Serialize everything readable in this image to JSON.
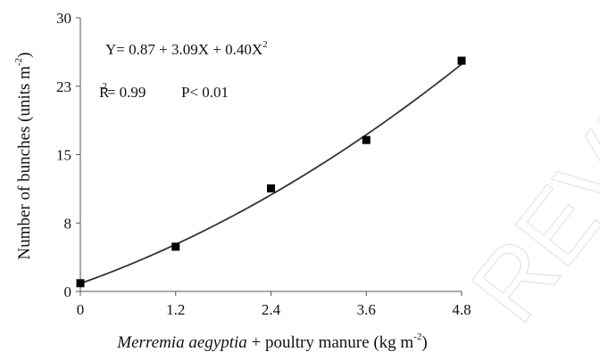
{
  "watermark": "REVIEW",
  "chart_data": {
    "type": "scatter",
    "x": [
      0,
      1.2,
      2.4,
      3.6,
      4.8
    ],
    "y": [
      0.9,
      4.9,
      11.3,
      16.6,
      25.3
    ],
    "xlim": [
      0,
      4.8
    ],
    "ylim": [
      0,
      30
    ],
    "xticks": [
      "0",
      "1.2",
      "2.4",
      "3.6",
      "4.8"
    ],
    "yticks": [
      "0",
      "8",
      "15",
      "23",
      "30"
    ],
    "ytick_values": [
      0,
      7.5,
      15,
      22.5,
      30
    ],
    "fit": {
      "a": 0.87,
      "b": 3.09,
      "c": 0.4
    },
    "equation": {
      "main": "Y= 0.87 + 3.09X + 0.40X",
      "sup": "2"
    },
    "stats": {
      "r": "R",
      "r_sup": "2",
      "r_rest": "= 0.99",
      "p": "P< 0.01"
    },
    "xlabel": {
      "italic": "Merremia aegyptia",
      "rest": " + poultry manure (kg m",
      "sup": "-2",
      "close": ")"
    },
    "ylabel": {
      "main": "Number of bunches (units m",
      "sup": "-2",
      "close": ")"
    },
    "colors": {
      "marker": "#000000",
      "axis": "#555555",
      "curve": "#333333"
    }
  }
}
